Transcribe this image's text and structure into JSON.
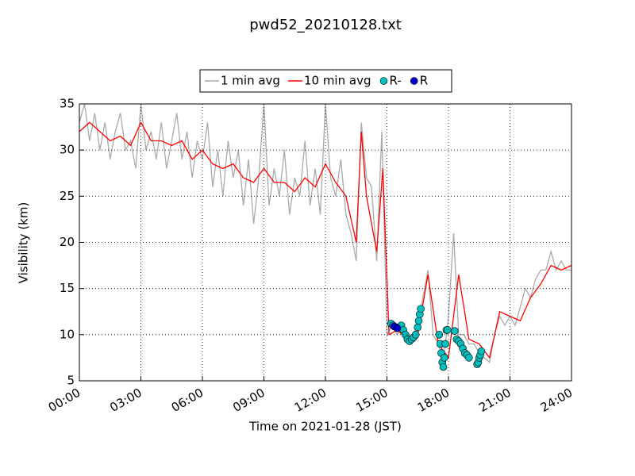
{
  "chart_data": {
    "type": "line",
    "title": "pwd52_20210128.txt",
    "x_label": "Time on 2021-01-28 (JST)",
    "y_label": "Visibility (km)",
    "xlim": [
      0,
      24
    ],
    "ylim": [
      5,
      35
    ],
    "xticks": [
      {
        "value": 0,
        "label": "00:00"
      },
      {
        "value": 3,
        "label": "03:00"
      },
      {
        "value": 6,
        "label": "06:00"
      },
      {
        "value": 9,
        "label": "09:00"
      },
      {
        "value": 12,
        "label": "12:00"
      },
      {
        "value": 15,
        "label": "15:00"
      },
      {
        "value": 18,
        "label": "18:00"
      },
      {
        "value": 21,
        "label": "21:00"
      },
      {
        "value": 24,
        "label": "24:00"
      }
    ],
    "yticks": [
      5,
      10,
      15,
      20,
      25,
      30,
      35
    ],
    "grid": true,
    "legend": "top",
    "series": [
      {
        "name": "1 min avg",
        "type": "line",
        "color": "#aaaaaa",
        "x": [
          0,
          0.25,
          0.5,
          0.75,
          1,
          1.25,
          1.5,
          1.75,
          2,
          2.25,
          2.5,
          2.75,
          3,
          3.25,
          3.5,
          3.75,
          4,
          4.25,
          4.5,
          4.75,
          5,
          5.25,
          5.5,
          5.75,
          6,
          6.25,
          6.5,
          6.75,
          7,
          7.25,
          7.5,
          7.75,
          8,
          8.25,
          8.5,
          8.75,
          9,
          9.25,
          9.5,
          9.75,
          10,
          10.25,
          10.5,
          10.75,
          11,
          11.25,
          11.5,
          11.75,
          12,
          12.25,
          12.5,
          12.75,
          13,
          13.25,
          13.5,
          13.75,
          14,
          14.25,
          14.5,
          14.75,
          15,
          15.25,
          15.5,
          15.75,
          16,
          16.25,
          16.5,
          16.75,
          17,
          17.25,
          17.5,
          17.75,
          18,
          18.25,
          18.5,
          18.75,
          19,
          19.25,
          19.5,
          19.75,
          20,
          20.25,
          20.5,
          20.75,
          21,
          21.25,
          21.5,
          21.75,
          22,
          22.25,
          22.5,
          22.75,
          23,
          23.25,
          23.5,
          23.75,
          24
        ],
        "values": [
          33,
          35,
          31,
          34,
          30,
          33,
          29,
          32,
          34,
          30,
          31,
          28,
          35,
          30,
          32,
          29,
          33,
          28,
          31,
          34,
          29,
          32,
          27,
          31,
          29,
          33,
          26,
          30,
          25,
          31,
          27,
          30,
          24,
          29,
          22,
          27,
          35,
          24,
          28,
          25,
          30,
          23,
          27,
          25,
          31,
          24,
          28,
          23,
          35,
          27,
          25,
          29,
          23,
          21,
          18,
          33,
          27,
          26,
          18,
          32,
          10,
          11,
          10,
          11,
          9.5,
          10,
          11,
          14,
          17,
          10,
          9,
          7,
          12,
          21,
          10,
          10,
          9,
          9,
          8,
          7.5,
          7,
          10,
          12,
          11,
          12,
          11,
          13,
          15,
          14,
          16,
          17,
          17,
          19,
          17,
          18,
          17,
          17
        ]
      },
      {
        "name": "10 min avg",
        "type": "line",
        "color": "#ff0000",
        "x": [
          0,
          0.5,
          1,
          1.5,
          2,
          2.5,
          3,
          3.5,
          4,
          4.5,
          5,
          5.5,
          6,
          6.5,
          7,
          7.5,
          8,
          8.5,
          9,
          9.5,
          10,
          10.5,
          11,
          11.5,
          12,
          12.5,
          13,
          13.5,
          13.75,
          14,
          14.5,
          14.8,
          15.1,
          15.5,
          16,
          16.5,
          17,
          17.5,
          18,
          18.5,
          19,
          19.5,
          20,
          20.5,
          21,
          21.5,
          22,
          22.5,
          23,
          23.5,
          24
        ],
        "values": [
          32,
          33,
          32,
          31,
          31.5,
          30.5,
          33,
          31,
          31,
          30.5,
          31,
          29,
          30,
          28.5,
          28,
          28.5,
          27,
          26.5,
          28,
          26.5,
          26.5,
          25.5,
          27,
          26,
          28.5,
          26.5,
          25,
          20,
          32,
          25,
          19,
          28,
          10,
          10.5,
          9.5,
          10,
          16.5,
          9,
          7.5,
          16.5,
          9.5,
          9,
          7.5,
          12.5,
          12,
          11.5,
          14,
          15.5,
          17.5,
          17,
          17.5
        ]
      },
      {
        "name": "R-",
        "type": "scatter",
        "color": "#00bfbf",
        "x": [
          15.2,
          15.3,
          15.45,
          15.7,
          15.8,
          15.9,
          16,
          16.1,
          16.2,
          16.3,
          16.4,
          16.5,
          16.55,
          16.6,
          16.65,
          17.55,
          17.6,
          17.65,
          17.7,
          17.75,
          17.8,
          17.85,
          17.9,
          17.95,
          18.3,
          18.4,
          18.5,
          18.6,
          18.7,
          18.8,
          18.9,
          19,
          19.4,
          19.45,
          19.5,
          19.55,
          19.6
        ],
        "values": [
          11.2,
          11,
          10.8,
          11,
          10.5,
          10,
          9.5,
          9.3,
          9.5,
          9.7,
          10,
          10.8,
          11.5,
          12.2,
          12.8,
          10,
          9,
          8,
          7,
          6.5,
          7.5,
          9,
          10.5,
          10.5,
          10.4,
          9.5,
          9.3,
          9,
          8.5,
          8,
          7.8,
          7.5,
          6.8,
          7,
          7.5,
          7.8,
          8.2
        ]
      },
      {
        "name": "R",
        "type": "scatter",
        "color": "#0000cc",
        "x": [
          15.35,
          15.5
        ],
        "values": [
          10.9,
          10.7
        ]
      }
    ]
  }
}
